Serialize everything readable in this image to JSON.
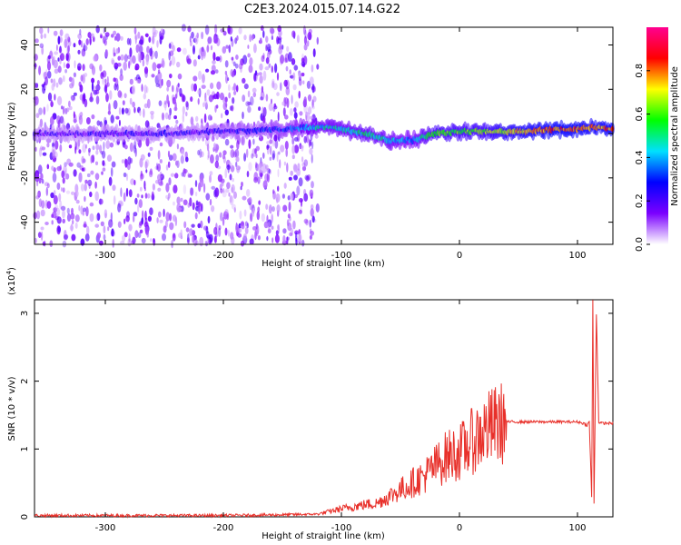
{
  "title": "C2E3.2024.015.07.14.G22",
  "chart_data": [
    {
      "type": "heatmap",
      "xlabel": "Height of straight line (km)",
      "ylabel": "Frequency (Hz)",
      "xlim": [
        -360,
        130
      ],
      "ylim": [
        -50,
        48
      ],
      "xticks": [
        -300,
        -200,
        -100,
        0,
        100
      ],
      "yticks": [
        -40,
        -20,
        0,
        20,
        40
      ],
      "colorbar": {
        "label": "Normalized spectral amplitude",
        "range": [
          0.0,
          1.0
        ],
        "ticks": [
          "0.0",
          "0.2",
          "0.4",
          "0.6",
          "0.8"
        ],
        "colormap": [
          "#ffffff",
          "#7b00ff",
          "#0000ff",
          "#00e0ff",
          "#00ff00",
          "#ffff00",
          "#ff0000",
          "#ff0090"
        ]
      },
      "ridge": {
        "x": [
          -360,
          -300,
          -250,
          -200,
          -150,
          -120,
          -100,
          -80,
          -60,
          -40,
          -20,
          0,
          20,
          40,
          60,
          80,
          100,
          110,
          130
        ],
        "y": [
          0,
          0,
          0,
          1,
          2,
          3,
          2,
          0,
          -3,
          -3,
          0,
          1,
          1,
          1,
          1,
          2,
          2,
          3,
          2
        ],
        "amplitude": [
          0.18,
          0.2,
          0.2,
          0.22,
          0.3,
          0.45,
          0.45,
          0.5,
          0.45,
          0.4,
          0.6,
          0.6,
          0.62,
          0.7,
          0.75,
          0.8,
          0.8,
          0.75,
          0.8
        ]
      }
    },
    {
      "type": "line",
      "xlabel": "Height of straight line (km)",
      "ylabel": "SNR (10 * v/v)",
      "yunit": "(x10",
      "yunit_exp": "4",
      "yunit_close": ")",
      "xlim": [
        -360,
        130
      ],
      "ylim": [
        0,
        3.2
      ],
      "xticks": [
        -300,
        -200,
        -100,
        0,
        100
      ],
      "yticks": [
        0,
        1,
        2,
        3
      ],
      "color": "#e8302a",
      "series": [
        {
          "x": [
            -360,
            -300,
            -250,
            -200,
            -150,
            -120,
            -110,
            -100,
            -90,
            -80,
            -70,
            -60,
            -50,
            -40,
            -30,
            -20,
            -10,
            0,
            10,
            20,
            30,
            40,
            60,
            80,
            100,
            105,
            108,
            110,
            112,
            113,
            114,
            116,
            118,
            120,
            130
          ],
          "y": [
            0.02,
            0.02,
            0.02,
            0.02,
            0.03,
            0.04,
            0.08,
            0.12,
            0.15,
            0.18,
            0.2,
            0.3,
            0.4,
            0.5,
            0.6,
            0.75,
            0.9,
            0.95,
            1.1,
            1.25,
            1.35,
            1.4,
            1.4,
            1.4,
            1.4,
            1.38,
            1.35,
            1.4,
            0.3,
            3.2,
            0.2,
            3.0,
            1.4,
            1.38,
            1.38
          ]
        }
      ]
    }
  ]
}
